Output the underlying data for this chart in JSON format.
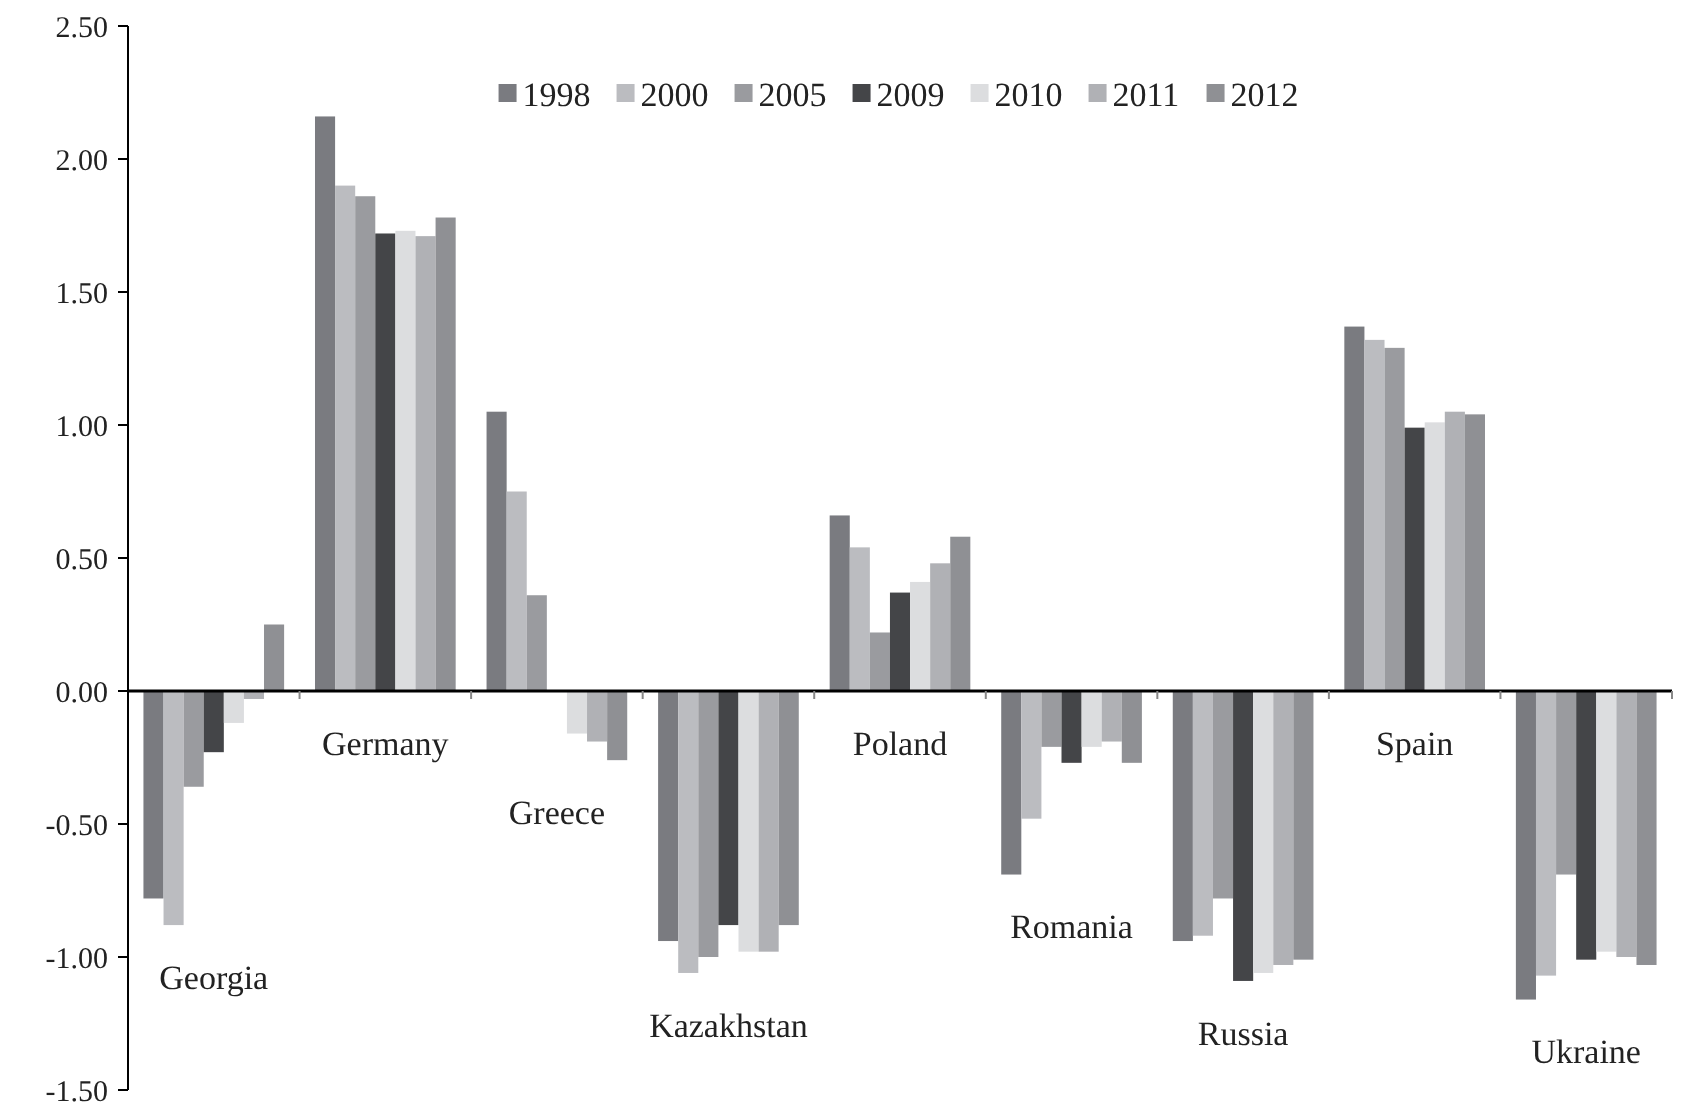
{
  "chart_data": {
    "type": "bar",
    "categories": [
      "Georgia",
      "Germany",
      "Greece",
      "Kazakhstan",
      "Poland",
      "Romania",
      "Russia",
      "Spain",
      "Ukraine"
    ],
    "series": [
      {
        "name": "1998",
        "color": "#7a7b80",
        "values": [
          -0.78,
          2.16,
          1.05,
          -0.94,
          0.66,
          -0.69,
          -0.94,
          1.37,
          -1.16
        ]
      },
      {
        "name": "2000",
        "color": "#bbbcc0",
        "values": [
          -0.88,
          1.9,
          0.75,
          -1.06,
          0.54,
          -0.48,
          -0.92,
          1.32,
          -1.07
        ]
      },
      {
        "name": "2005",
        "color": "#9a9b9f",
        "values": [
          -0.36,
          1.86,
          0.36,
          -1.0,
          0.22,
          -0.21,
          -0.78,
          1.29,
          -0.69
        ]
      },
      {
        "name": "2009",
        "color": "#444548",
        "values": [
          -0.23,
          1.72,
          null,
          -0.88,
          0.37,
          -0.27,
          -1.09,
          0.99,
          -1.01
        ]
      },
      {
        "name": "2010",
        "color": "#dcdddf",
        "values": [
          -0.12,
          1.73,
          -0.16,
          -0.98,
          0.41,
          -0.21,
          -1.06,
          1.01,
          -0.98
        ]
      },
      {
        "name": "2011",
        "color": "#b0b1b5",
        "values": [
          -0.03,
          1.71,
          -0.19,
          -0.98,
          0.48,
          -0.19,
          -1.03,
          1.05,
          -1.0
        ]
      },
      {
        "name": "2012",
        "color": "#8f9094",
        "values": [
          0.25,
          1.78,
          -0.26,
          -0.88,
          0.58,
          -0.27,
          -1.01,
          1.04,
          -1.03
        ]
      }
    ],
    "ylim": [
      -1.5,
      2.5
    ],
    "yticks": [
      {
        "value": -1.5,
        "label": "-1.50"
      },
      {
        "value": -1,
        "label": "-1.00"
      },
      {
        "value": -0.5,
        "label": "-0.50"
      },
      {
        "value": 0,
        "label": "0.00"
      },
      {
        "value": 0.5,
        "label": "0.50"
      },
      {
        "value": 1,
        "label": "1.00"
      },
      {
        "value": 1.5,
        "label": "1.50"
      },
      {
        "value": 2,
        "label": "2.00"
      },
      {
        "value": 2.5,
        "label": "2.50"
      }
    ],
    "grid": false,
    "legend": "top"
  }
}
